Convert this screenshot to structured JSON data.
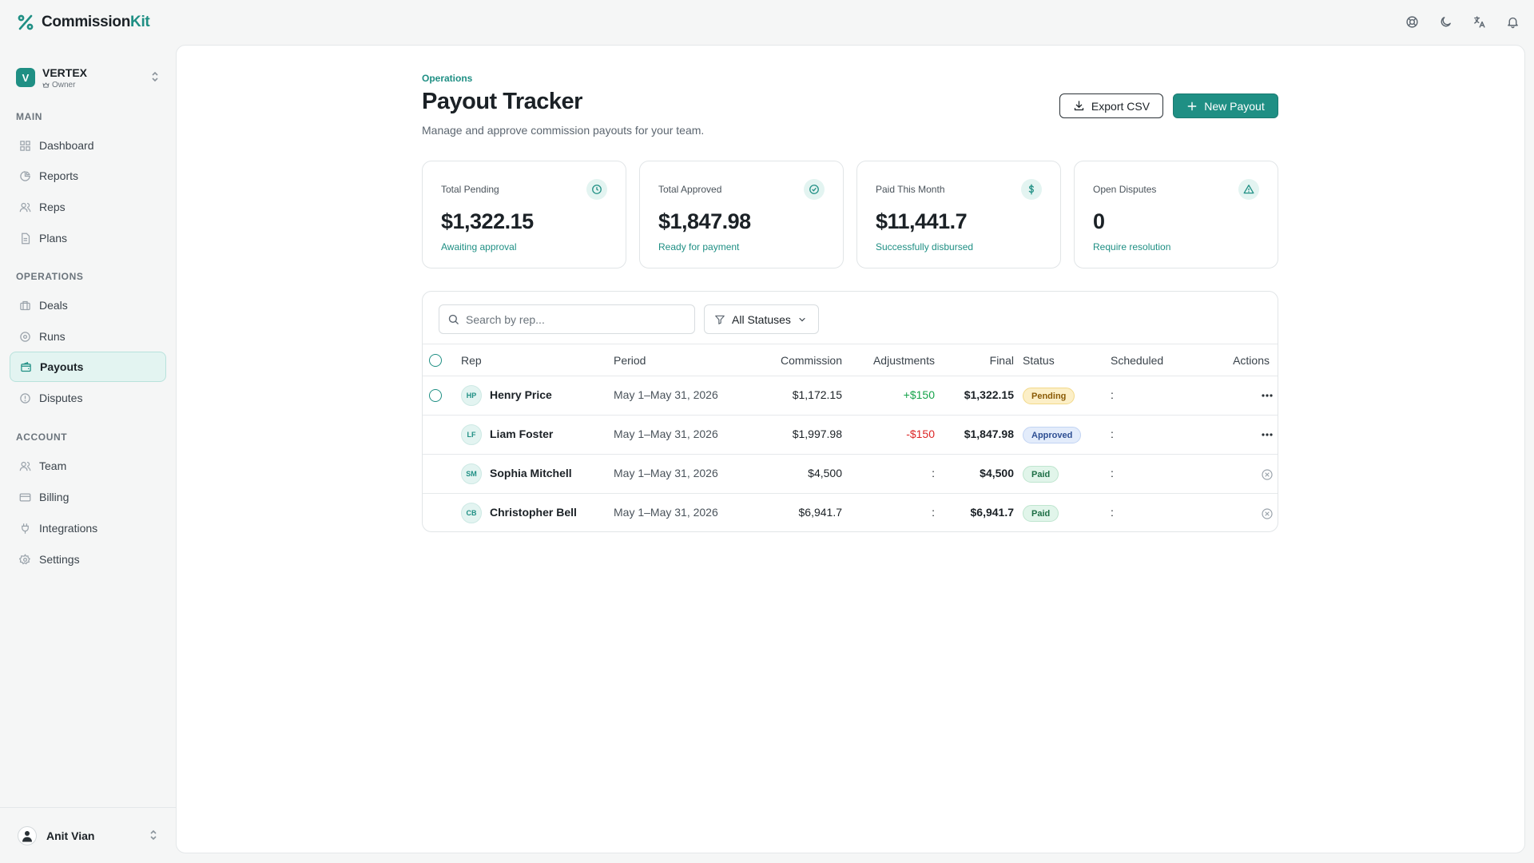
{
  "app": {
    "name_part1": "Commission",
    "name_part2": "Kit",
    "accent": "#1f8f84"
  },
  "top_icons": [
    "help-icon",
    "moon-icon",
    "translate-icon",
    "bell-icon"
  ],
  "org": {
    "initial": "V",
    "name": "VERTEX",
    "role": "Owner"
  },
  "sidebar": {
    "sections": [
      {
        "label": "MAIN",
        "items": [
          {
            "label": "Dashboard",
            "icon": "grid-icon"
          },
          {
            "label": "Reports",
            "icon": "pie-chart-icon"
          },
          {
            "label": "Reps",
            "icon": "users-icon"
          },
          {
            "label": "Plans",
            "icon": "file-icon"
          }
        ]
      },
      {
        "label": "OPERATIONS",
        "items": [
          {
            "label": "Deals",
            "icon": "briefcase-icon"
          },
          {
            "label": "Runs",
            "icon": "play-circle-icon"
          },
          {
            "label": "Payouts",
            "icon": "wallet-icon",
            "active": true
          },
          {
            "label": "Disputes",
            "icon": "alert-circle-icon"
          }
        ]
      },
      {
        "label": "ACCOUNT",
        "items": [
          {
            "label": "Team",
            "icon": "team-icon"
          },
          {
            "label": "Billing",
            "icon": "credit-card-icon"
          },
          {
            "label": "Integrations",
            "icon": "plug-icon"
          },
          {
            "label": "Settings",
            "icon": "gear-icon"
          }
        ]
      }
    ]
  },
  "user": {
    "name": "Anit Vian"
  },
  "page": {
    "breadcrumb": "Operations",
    "title": "Payout Tracker",
    "subtitle": "Manage and approve commission payouts for your team.",
    "export_label": "Export CSV",
    "new_label": "New Payout"
  },
  "stats": [
    {
      "label": "Total Pending",
      "value": "$1,322.15",
      "note": "Awaiting approval",
      "icon": "clock-icon"
    },
    {
      "label": "Total Approved",
      "value": "$1,847.98",
      "note": "Ready for payment",
      "icon": "check-circle-icon"
    },
    {
      "label": "Paid This Month",
      "value": "$11,441.7",
      "note": "Successfully disbursed",
      "icon": "dollar-icon"
    },
    {
      "label": "Open Disputes",
      "value": "0",
      "note": "Require resolution",
      "icon": "warning-icon"
    }
  ],
  "table": {
    "search_placeholder": "Search by rep...",
    "status_filter": "All Statuses",
    "columns": [
      "Rep",
      "Period",
      "Commission",
      "Adjustments",
      "Final",
      "Status",
      "Scheduled",
      "Actions"
    ],
    "rows": [
      {
        "initials": "HP",
        "rep": "Henry Price",
        "period": "May 1–May 31, 2026",
        "commission": "$1,172.15",
        "adjustment": "+$150",
        "adj_color": "#16a34a",
        "final": "$1,322.15",
        "status": "Pending",
        "scheduled": ":",
        "selectable": true,
        "action": "more-icon"
      },
      {
        "initials": "LF",
        "rep": "Liam Foster",
        "period": "May 1–May 31, 2026",
        "commission": "$1,997.98",
        "adjustment": "-$150",
        "adj_color": "#dc2626",
        "final": "$1,847.98",
        "status": "Approved",
        "scheduled": ":",
        "selectable": false,
        "action": "more-icon"
      },
      {
        "initials": "SM",
        "rep": "Sophia Mitchell",
        "period": "May 1–May 31, 2026",
        "commission": "$4,500",
        "adjustment": ":",
        "adj_color": "#1b2126",
        "final": "$4,500",
        "status": "Paid",
        "scheduled": ":",
        "selectable": false,
        "action": "x-circle-icon"
      },
      {
        "initials": "CB",
        "rep": "Christopher Bell",
        "period": "May 1–May 31, 2026",
        "commission": "$6,941.7",
        "adjustment": ":",
        "adj_color": "#1b2126",
        "final": "$6,941.7",
        "status": "Paid",
        "scheduled": ":",
        "selectable": false,
        "action": "x-circle-icon"
      }
    ]
  }
}
